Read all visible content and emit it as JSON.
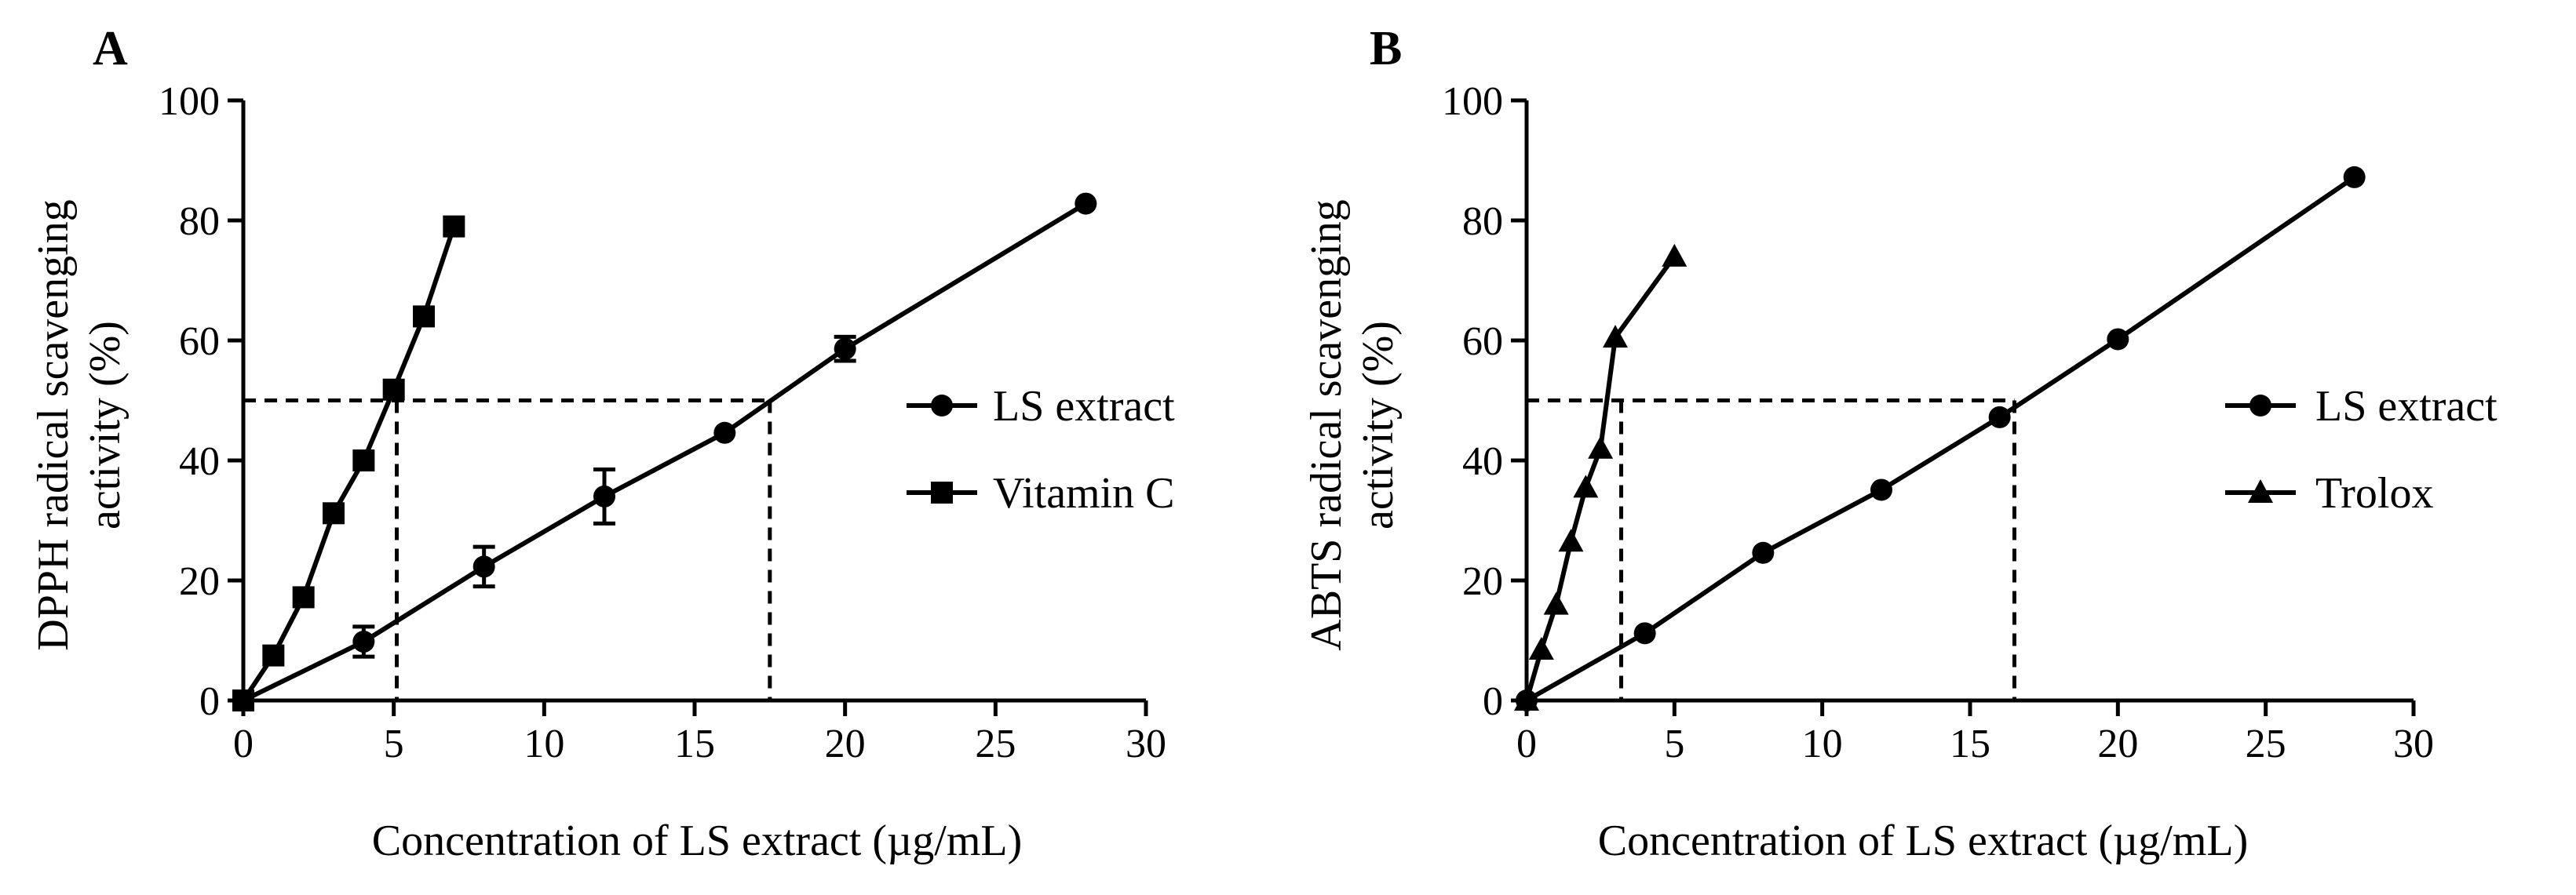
{
  "chart_data": [
    {
      "panel": "A",
      "type": "line",
      "xlabel": "Concentration of LS extract (µg/mL)",
      "ylabel_line1": "DPPH radical scavenging",
      "ylabel_line2": "activity (%)",
      "xlim": [
        0,
        30
      ],
      "ylim": [
        0,
        100
      ],
      "xticks": [
        "0",
        "5",
        "10",
        "15",
        "20",
        "25",
        "30"
      ],
      "yticks": [
        "0",
        "20",
        "40",
        "60",
        "80",
        "100"
      ],
      "legend_position": "right",
      "series": [
        {
          "name": "LS extract",
          "marker": "circle",
          "x": [
            0,
            4,
            8,
            12,
            16,
            20,
            28
          ],
          "y": [
            0,
            9.8,
            22.3,
            34.0,
            44.6,
            58.6,
            82.8
          ],
          "err": [
            0,
            2.5,
            3.3,
            4.5,
            0,
            2.0,
            0
          ]
        },
        {
          "name": "Vitamin C",
          "marker": "square",
          "x": [
            0,
            1,
            2,
            3,
            4,
            5,
            6,
            7
          ],
          "y": [
            0,
            7.5,
            17.2,
            31.2,
            40.0,
            51.8,
            64.0,
            79.0
          ],
          "err": [
            0,
            0,
            0,
            0,
            0,
            0,
            0,
            0
          ]
        }
      ],
      "reference_lines": {
        "y": 50,
        "x_values": [
          5.1,
          17.5
        ]
      }
    },
    {
      "panel": "B",
      "type": "line",
      "xlabel": "Concentration of LS extract (µg/mL)",
      "ylabel_line1": "ABTS radical scavenging",
      "ylabel_line2": "activity (%)",
      "xlim": [
        0,
        30
      ],
      "ylim": [
        0,
        100
      ],
      "xticks": [
        "0",
        "5",
        "10",
        "15",
        "20",
        "25",
        "30"
      ],
      "yticks": [
        "0",
        "20",
        "40",
        "60",
        "80",
        "100"
      ],
      "legend_position": "right",
      "series": [
        {
          "name": "LS extract",
          "marker": "circle",
          "x": [
            0,
            4,
            8,
            12,
            16,
            20,
            28
          ],
          "y": [
            0,
            11.2,
            24.6,
            35.1,
            47.2,
            60.2,
            87.2
          ],
          "err": [
            0,
            0,
            0,
            0,
            0,
            0,
            0
          ]
        },
        {
          "name": "Trolox",
          "marker": "triangle",
          "x": [
            0,
            0.5,
            1,
            1.5,
            2,
            2.5,
            3,
            5
          ],
          "y": [
            0,
            8.5,
            16.0,
            26.5,
            35.5,
            42.0,
            60.5,
            74.0
          ],
          "err": [
            0,
            0,
            0,
            0,
            0,
            0,
            0,
            0
          ]
        }
      ],
      "reference_lines": {
        "y": 50,
        "x_values": [
          3.2,
          16.5
        ]
      }
    }
  ]
}
